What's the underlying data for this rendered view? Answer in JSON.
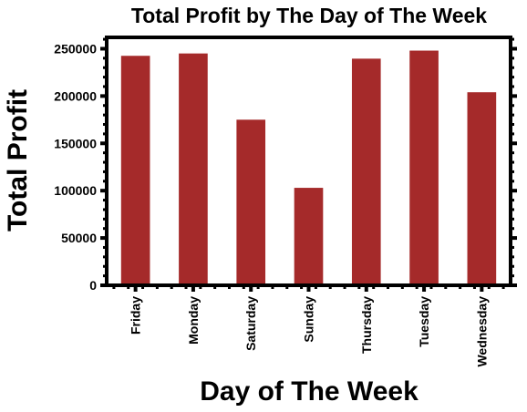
{
  "chart_data": {
    "type": "bar",
    "title": "Total Profit by The Day of The Week",
    "xlabel": "Day of The Week",
    "ylabel": "Total Profit",
    "categories": [
      "Friday",
      "Monday",
      "Saturday",
      "Sunday",
      "Thursday",
      "Tuesday",
      "Wednesday"
    ],
    "values": [
      242500,
      245000,
      175000,
      103000,
      239500,
      248000,
      204000
    ],
    "ylim": [
      0,
      262000
    ],
    "yticks": [
      0,
      50000,
      100000,
      150000,
      200000,
      250000
    ],
    "ytick_labels": [
      "0",
      "50000",
      "100000",
      "150000",
      "200000",
      "250000"
    ],
    "bar_color": "#a52a2a",
    "grid": false,
    "legend": "none"
  }
}
